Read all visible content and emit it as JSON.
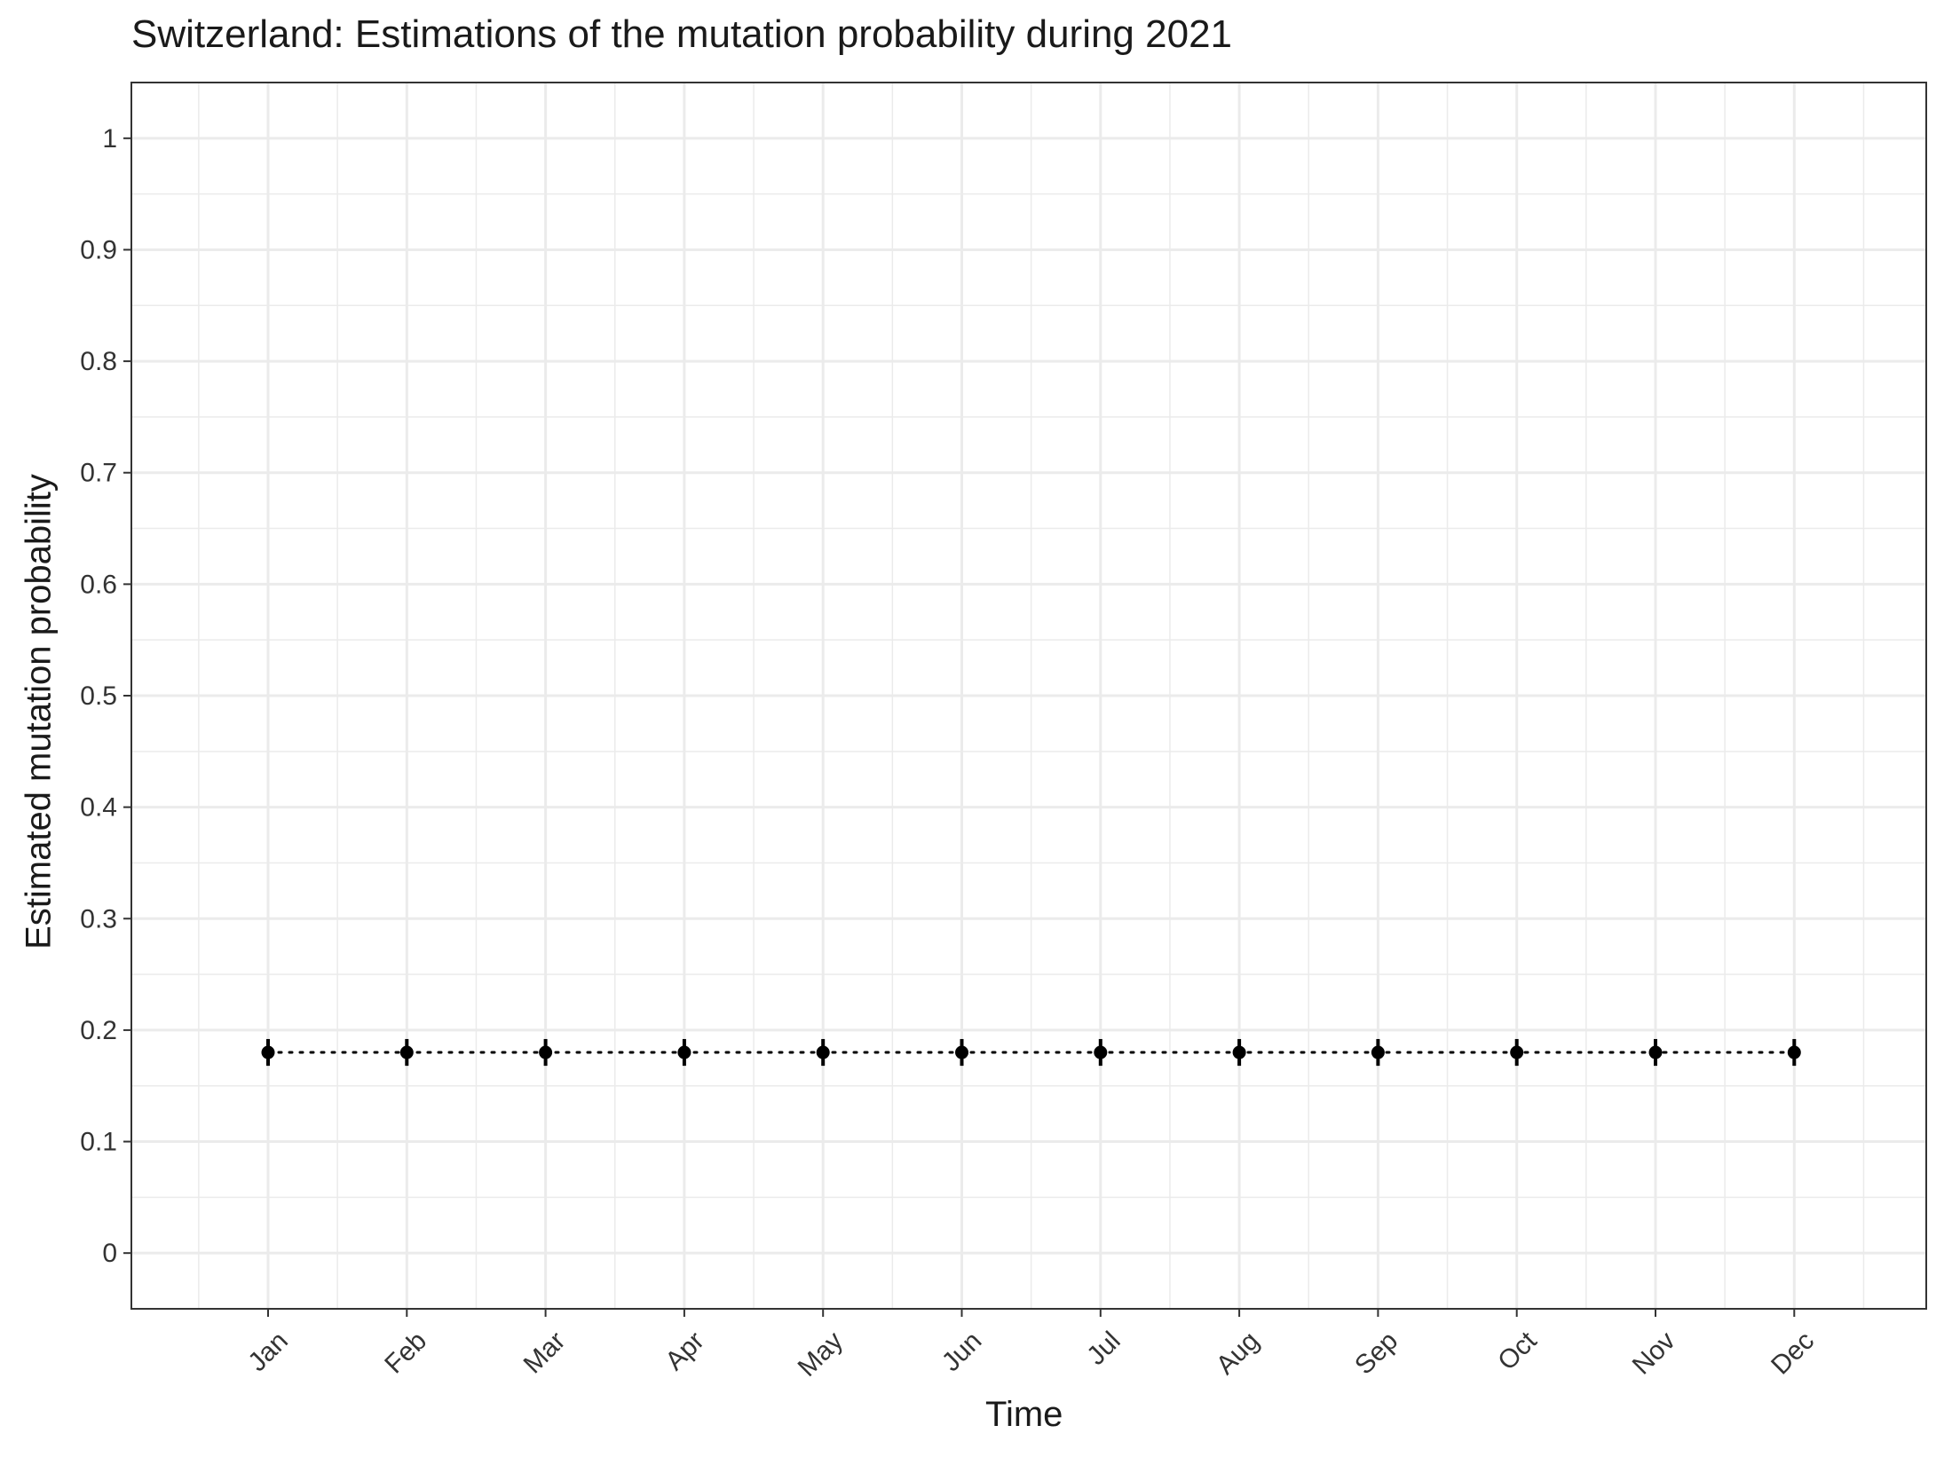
{
  "chart_data": {
    "type": "line",
    "title": "Switzerland: Estimations of the mutation probability during 2021",
    "xlabel": "Time",
    "ylabel": "Estimated mutation probability",
    "categories": [
      "Jan",
      "Feb",
      "Mar",
      "Apr",
      "May",
      "Jun",
      "Jul",
      "Aug",
      "Sep",
      "Oct",
      "Nov",
      "Dec"
    ],
    "series": [
      {
        "values": [
          0.18,
          0.18,
          0.18,
          0.18,
          0.18,
          0.18,
          0.18,
          0.18,
          0.18,
          0.18,
          0.18,
          0.18
        ],
        "lower": [
          0.168,
          0.168,
          0.168,
          0.168,
          0.168,
          0.168,
          0.168,
          0.168,
          0.168,
          0.168,
          0.168,
          0.168
        ],
        "upper": [
          0.192,
          0.192,
          0.192,
          0.192,
          0.192,
          0.192,
          0.192,
          0.192,
          0.192,
          0.192,
          0.192,
          0.192
        ],
        "line_style": "dotted",
        "color": "#000000"
      }
    ],
    "yticks": [
      "0",
      "0.1",
      "0.2",
      "0.3",
      "0.4",
      "0.5",
      "0.6",
      "0.7",
      "0.8",
      "0.9",
      "1"
    ],
    "ylim": [
      -0.05,
      1.05
    ],
    "grid": true,
    "legend": "none",
    "colors": {
      "grid": "#ebebeb",
      "border": "#333333",
      "point": "#000000"
    }
  }
}
